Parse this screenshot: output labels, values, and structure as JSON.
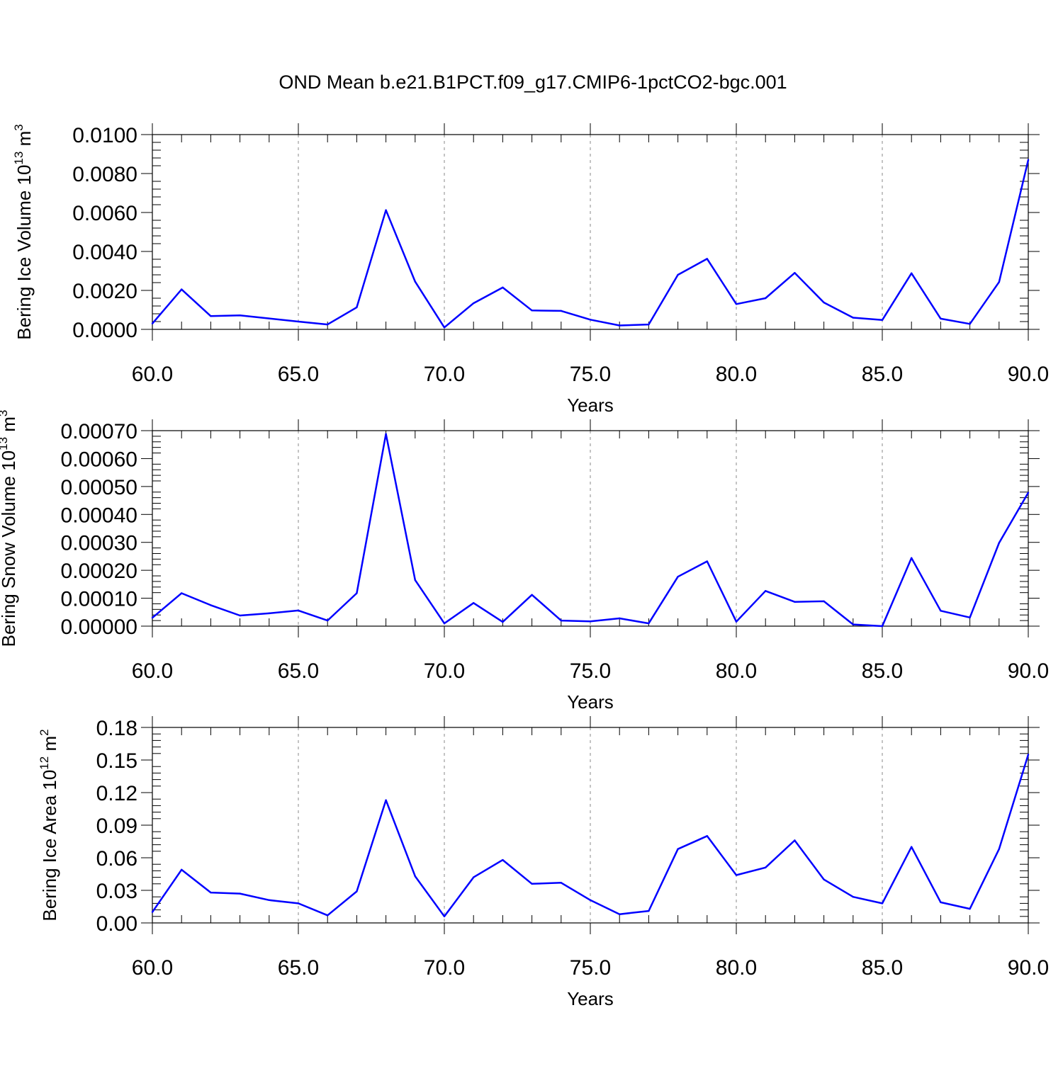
{
  "title": "OND Mean b.e21.B1PCT.f09_g17.CMIP6-1pctCO2-bgc.001",
  "colors": {
    "line": "#0000ff",
    "axis": "#000000",
    "grid": "#888888"
  },
  "chart_data": [
    {
      "type": "line",
      "ylabel": {
        "text": "Bering Ice Volume 10",
        "exp": "13",
        "unit": " m",
        "unit_exp": "3"
      },
      "xlabel": "Years",
      "xlim": [
        60,
        90
      ],
      "ylim": [
        0,
        0.01
      ],
      "xticks": [
        60,
        65,
        70,
        75,
        80,
        85,
        90
      ],
      "xtick_labels": [
        "60.0",
        "65.0",
        "70.0",
        "75.0",
        "80.0",
        "85.0",
        "90.0"
      ],
      "yticks": [
        0,
        0.002,
        0.004,
        0.006,
        0.008,
        0.01
      ],
      "ytick_labels": [
        "0.0000",
        "0.0020",
        "0.0040",
        "0.0060",
        "0.0080",
        "0.0100"
      ],
      "grid_x": true,
      "x": [
        60,
        61,
        62,
        63,
        64,
        65,
        66,
        67,
        68,
        69,
        70,
        71,
        72,
        73,
        74,
        75,
        76,
        77,
        78,
        79,
        80,
        81,
        82,
        83,
        84,
        85,
        86,
        87,
        88,
        89,
        90
      ],
      "values": [
        0.0003,
        0.00205,
        0.00068,
        0.00072,
        0.00056,
        0.0004,
        0.00025,
        0.00113,
        0.00612,
        0.00245,
        0.0001,
        0.00134,
        0.00215,
        0.00097,
        0.00095,
        0.0005,
        0.0002,
        0.00025,
        0.0028,
        0.00362,
        0.0013,
        0.0016,
        0.0029,
        0.00138,
        0.0006,
        0.00048,
        0.00288,
        0.00055,
        0.00028,
        0.00243,
        0.0087
      ]
    },
    {
      "type": "line",
      "ylabel": {
        "text": "Bering Snow Volume 10",
        "exp": "13",
        "unit": " m",
        "unit_exp": "3"
      },
      "xlabel": "Years",
      "xlim": [
        60,
        90
      ],
      "ylim": [
        0,
        0.0007
      ],
      "xticks": [
        60,
        65,
        70,
        75,
        80,
        85,
        90
      ],
      "xtick_labels": [
        "60.0",
        "65.0",
        "70.0",
        "75.0",
        "80.0",
        "85.0",
        "90.0"
      ],
      "yticks": [
        0,
        0.0001,
        0.0002,
        0.0003,
        0.0004,
        0.0005,
        0.0006,
        0.0007
      ],
      "ytick_labels": [
        "0.00000",
        "0.00010",
        "0.00020",
        "0.00030",
        "0.00040",
        "0.00050",
        "0.00060",
        "0.00070"
      ],
      "grid_x": true,
      "x": [
        60,
        61,
        62,
        63,
        64,
        65,
        66,
        67,
        68,
        69,
        70,
        71,
        72,
        73,
        74,
        75,
        76,
        77,
        78,
        79,
        80,
        81,
        82,
        83,
        84,
        85,
        86,
        87,
        88,
        89,
        90
      ],
      "values": [
        3e-05,
        0.000118,
        7.5e-05,
        3.8e-05,
        4.6e-05,
        5.6e-05,
        2e-05,
        0.000118,
        0.000688,
        0.000165,
        1e-05,
        8.3e-05,
        1.5e-05,
        0.000112,
        2e-05,
        1.7e-05,
        2.8e-05,
        1e-05,
        0.000177,
        0.000232,
        1.6e-05,
        0.000126,
        8.7e-05,
        8.9e-05,
        6e-06,
        0.0,
        0.000244,
        5.5e-05,
        3.1e-05,
        0.000298,
        0.000478
      ]
    },
    {
      "type": "line",
      "ylabel": {
        "text": "Bering Ice Area 10",
        "exp": "12",
        "unit": " m",
        "unit_exp": "2"
      },
      "xlabel": "Years",
      "xlim": [
        60,
        90
      ],
      "ylim": [
        0,
        0.18
      ],
      "xticks": [
        60,
        65,
        70,
        75,
        80,
        85,
        90
      ],
      "xtick_labels": [
        "60.0",
        "65.0",
        "70.0",
        "75.0",
        "80.0",
        "85.0",
        "90.0"
      ],
      "yticks": [
        0,
        0.03,
        0.06,
        0.09,
        0.12,
        0.15,
        0.18
      ],
      "ytick_labels": [
        "0.00",
        "0.03",
        "0.06",
        "0.09",
        "0.12",
        "0.15",
        "0.18"
      ],
      "grid_x": true,
      "x": [
        60,
        61,
        62,
        63,
        64,
        65,
        66,
        67,
        68,
        69,
        70,
        71,
        72,
        73,
        74,
        75,
        76,
        77,
        78,
        79,
        80,
        81,
        82,
        83,
        84,
        85,
        86,
        87,
        88,
        89,
        90
      ],
      "values": [
        0.01,
        0.049,
        0.028,
        0.027,
        0.021,
        0.018,
        0.007,
        0.029,
        0.113,
        0.043,
        0.006,
        0.042,
        0.058,
        0.036,
        0.037,
        0.021,
        0.008,
        0.011,
        0.068,
        0.08,
        0.044,
        0.051,
        0.076,
        0.04,
        0.024,
        0.018,
        0.07,
        0.019,
        0.013,
        0.068,
        0.155
      ]
    }
  ]
}
